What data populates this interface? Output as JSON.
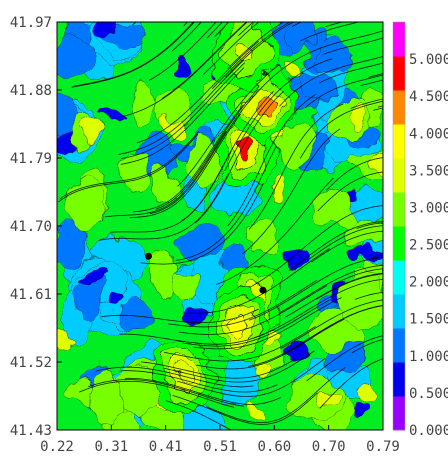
{
  "chart_data": {
    "type": "heatmap",
    "title": "",
    "xlabel": "",
    "ylabel": "",
    "xlim": [
      0.22,
      0.79
    ],
    "ylim": [
      41.43,
      41.97
    ],
    "x_ticks": [
      "0.22",
      "0.31",
      "0.41",
      "0.51",
      "0.60",
      "0.70",
      "0.79"
    ],
    "y_ticks": [
      "41.97",
      "41.88",
      "41.79",
      "41.70",
      "41.61",
      "41.52",
      "41.43"
    ],
    "colorbar": {
      "range": [
        0,
        5.5
      ],
      "tick_labels": [
        "0.000",
        "0.500",
        "1.000",
        "1.500",
        "2.000",
        "2.500",
        "3.000",
        "3.500",
        "4.000",
        "4.500",
        "5.000"
      ],
      "colors": [
        "#9900ff",
        "#0000ee",
        "#0077ff",
        "#00ccff",
        "#00ffee",
        "#00ff00",
        "#77ff00",
        "#ddff00",
        "#ffff00",
        "#ff8800",
        "#ff0000",
        "#ff00ff"
      ]
    },
    "overlay": "streamlines",
    "markers": [
      {
        "x": 0.38,
        "y": 41.66
      },
      {
        "x": 0.58,
        "y": 41.615
      }
    ],
    "hotspots": [
      {
        "x": 0.55,
        "y": 41.8,
        "value": 5.2
      },
      {
        "x": 0.58,
        "y": 41.86,
        "value": 4.6
      },
      {
        "x": 0.56,
        "y": 41.6,
        "value": 4.4
      },
      {
        "x": 0.54,
        "y": 41.57,
        "value": 4.2
      },
      {
        "x": 0.44,
        "y": 41.5,
        "value": 3.9
      },
      {
        "x": 0.55,
        "y": 41.93,
        "value": 3.8
      }
    ]
  }
}
